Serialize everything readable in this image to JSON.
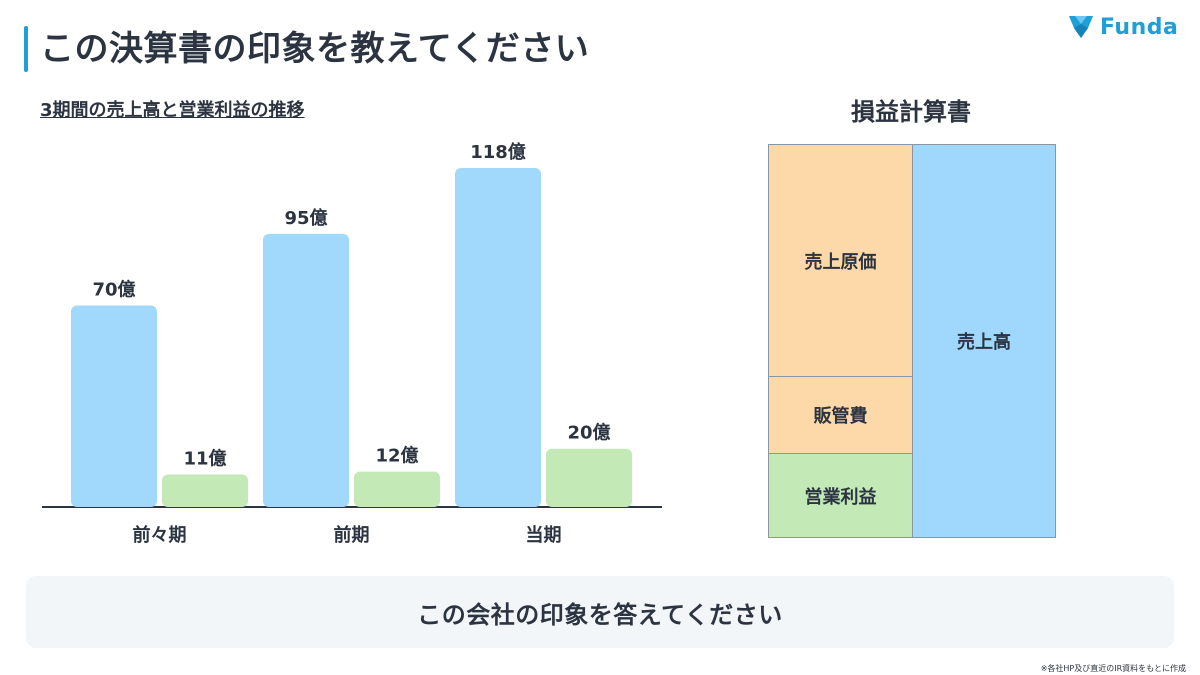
{
  "header": {
    "title": "この決算書の印象を教えてください",
    "logo_text": "Funda",
    "accent_color": "#1e9fd8"
  },
  "chart_data": {
    "type": "bar",
    "title": "3期間の売上高と営業利益の推移",
    "categories": [
      "前々期",
      "前期",
      "当期"
    ],
    "series": [
      {
        "values": [
          70,
          95,
          118
        ],
        "labels": [
          "70億",
          "95億",
          "118億"
        ],
        "color": "#a0d9fc"
      },
      {
        "values": [
          11,
          12,
          20
        ],
        "labels": [
          "11億",
          "12億",
          "20億"
        ],
        "color": "#c3e9b6"
      }
    ],
    "ylim": [
      0,
      118
    ],
    "grid": false,
    "legend": "none"
  },
  "pl_statement": {
    "title": "損益計算書",
    "cogs_label": "売上原価",
    "sga_label": "販管費",
    "operating_profit_label": "営業利益",
    "revenue_label": "売上高",
    "cost_color": "#fdd8a9",
    "profit_color": "#c3e9b6",
    "revenue_color": "#9fd8fc"
  },
  "question": {
    "text": "この会社の印象を答えてください"
  },
  "footer": {
    "source": "※各社HP及び直近のIR資料をもとに作成"
  }
}
